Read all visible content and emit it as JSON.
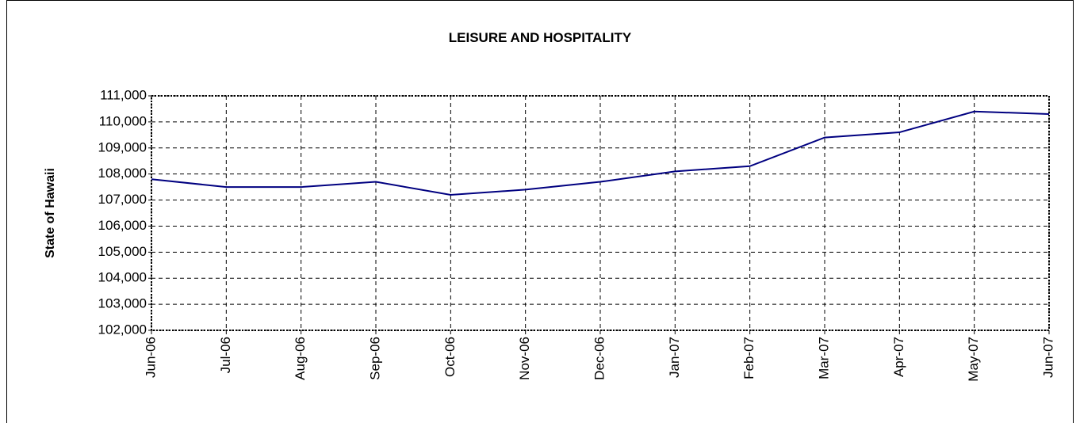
{
  "chart_data": {
    "type": "line",
    "title": "LEISURE AND HOSPITALITY",
    "y_label": "State of Hawaii",
    "categories": [
      "Jun-06",
      "Jul-06",
      "Aug-06",
      "Sep-06",
      "Oct-06",
      "Nov-06",
      "Dec-06",
      "Jan-07",
      "Feb-07",
      "Mar-07",
      "Apr-07",
      "May-07",
      "Jun-07"
    ],
    "series": [
      {
        "color": "#000080",
        "values": [
          107800,
          107500,
          107500,
          107700,
          107200,
          107400,
          107700,
          108100,
          108300,
          109400,
          109600,
          110400,
          110300
        ]
      }
    ],
    "ylim": [
      102000,
      111000
    ],
    "yticks": [
      {
        "value": 102000,
        "label": "102,000"
      },
      {
        "value": 103000,
        "label": "103,000"
      },
      {
        "value": 104000,
        "label": "104,000"
      },
      {
        "value": 105000,
        "label": "105,000"
      },
      {
        "value": 106000,
        "label": "106,000"
      },
      {
        "value": 107000,
        "label": "107,000"
      },
      {
        "value": 108000,
        "label": "108,000"
      },
      {
        "value": 109000,
        "label": "109,000"
      },
      {
        "value": 110000,
        "label": "110,000"
      },
      {
        "value": 111000,
        "label": "111,000"
      }
    ],
    "grid": true
  }
}
